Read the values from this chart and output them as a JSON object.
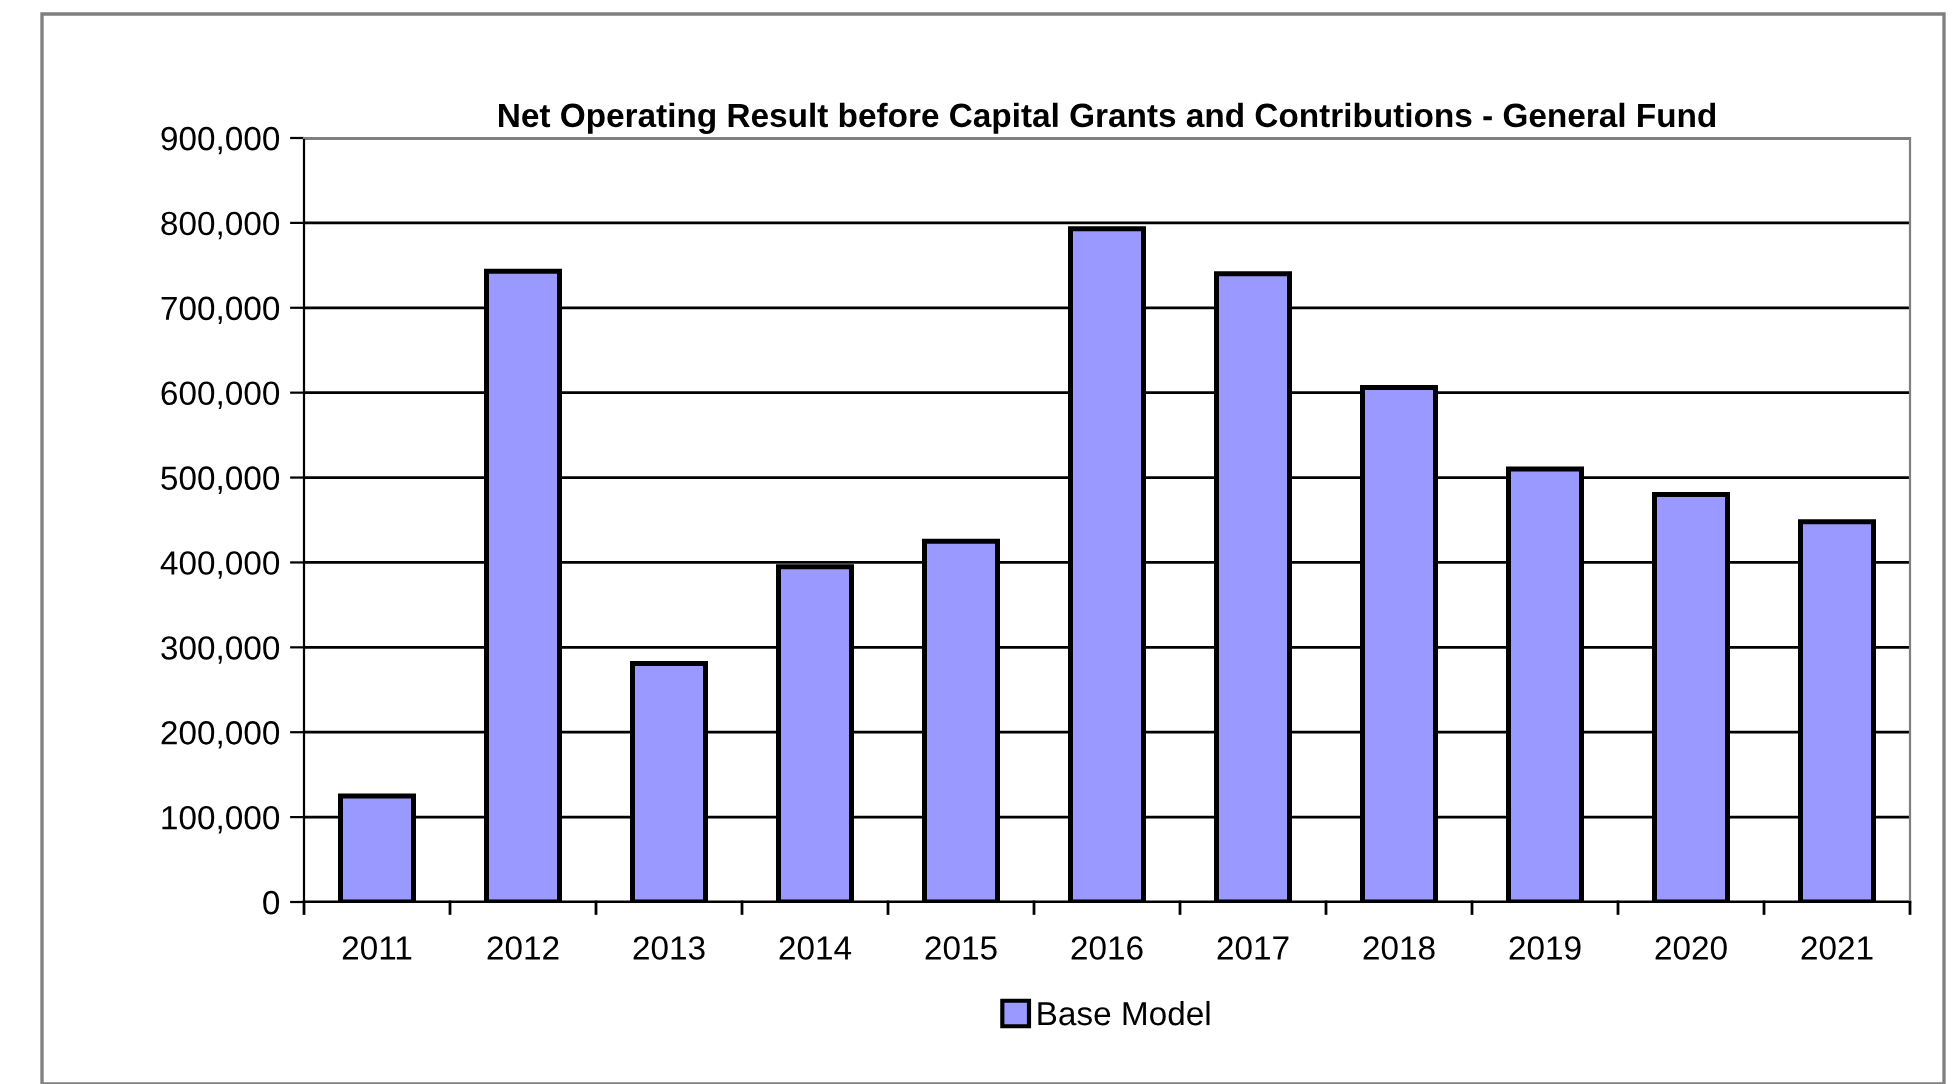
{
  "chart_data": {
    "type": "bar",
    "title": "Net Operating Result before Capital Grants and Contributions - General Fund",
    "categories": [
      "2011",
      "2012",
      "2013",
      "2014",
      "2015",
      "2016",
      "2017",
      "2018",
      "2019",
      "2020",
      "2021"
    ],
    "series": [
      {
        "name": "Base Model",
        "color": "#9999ff",
        "values": [
          125000,
          743000,
          281000,
          395000,
          425000,
          793000,
          740000,
          606000,
          510000,
          480000,
          448000
        ]
      }
    ],
    "ylim": [
      0,
      900000
    ],
    "yticks": [
      {
        "value": 0,
        "label": "0"
      },
      {
        "value": 100000,
        "label": "100,000"
      },
      {
        "value": 200000,
        "label": "200,000"
      },
      {
        "value": 300000,
        "label": "300,000"
      },
      {
        "value": 400000,
        "label": "400,000"
      },
      {
        "value": 500000,
        "label": "500,000"
      },
      {
        "value": 600000,
        "label": "600,000"
      },
      {
        "value": 700000,
        "label": "700,000"
      },
      {
        "value": 800000,
        "label": "800,000"
      },
      {
        "value": 900000,
        "label": "900,000"
      }
    ],
    "grid": "y",
    "legend": "bottom"
  }
}
